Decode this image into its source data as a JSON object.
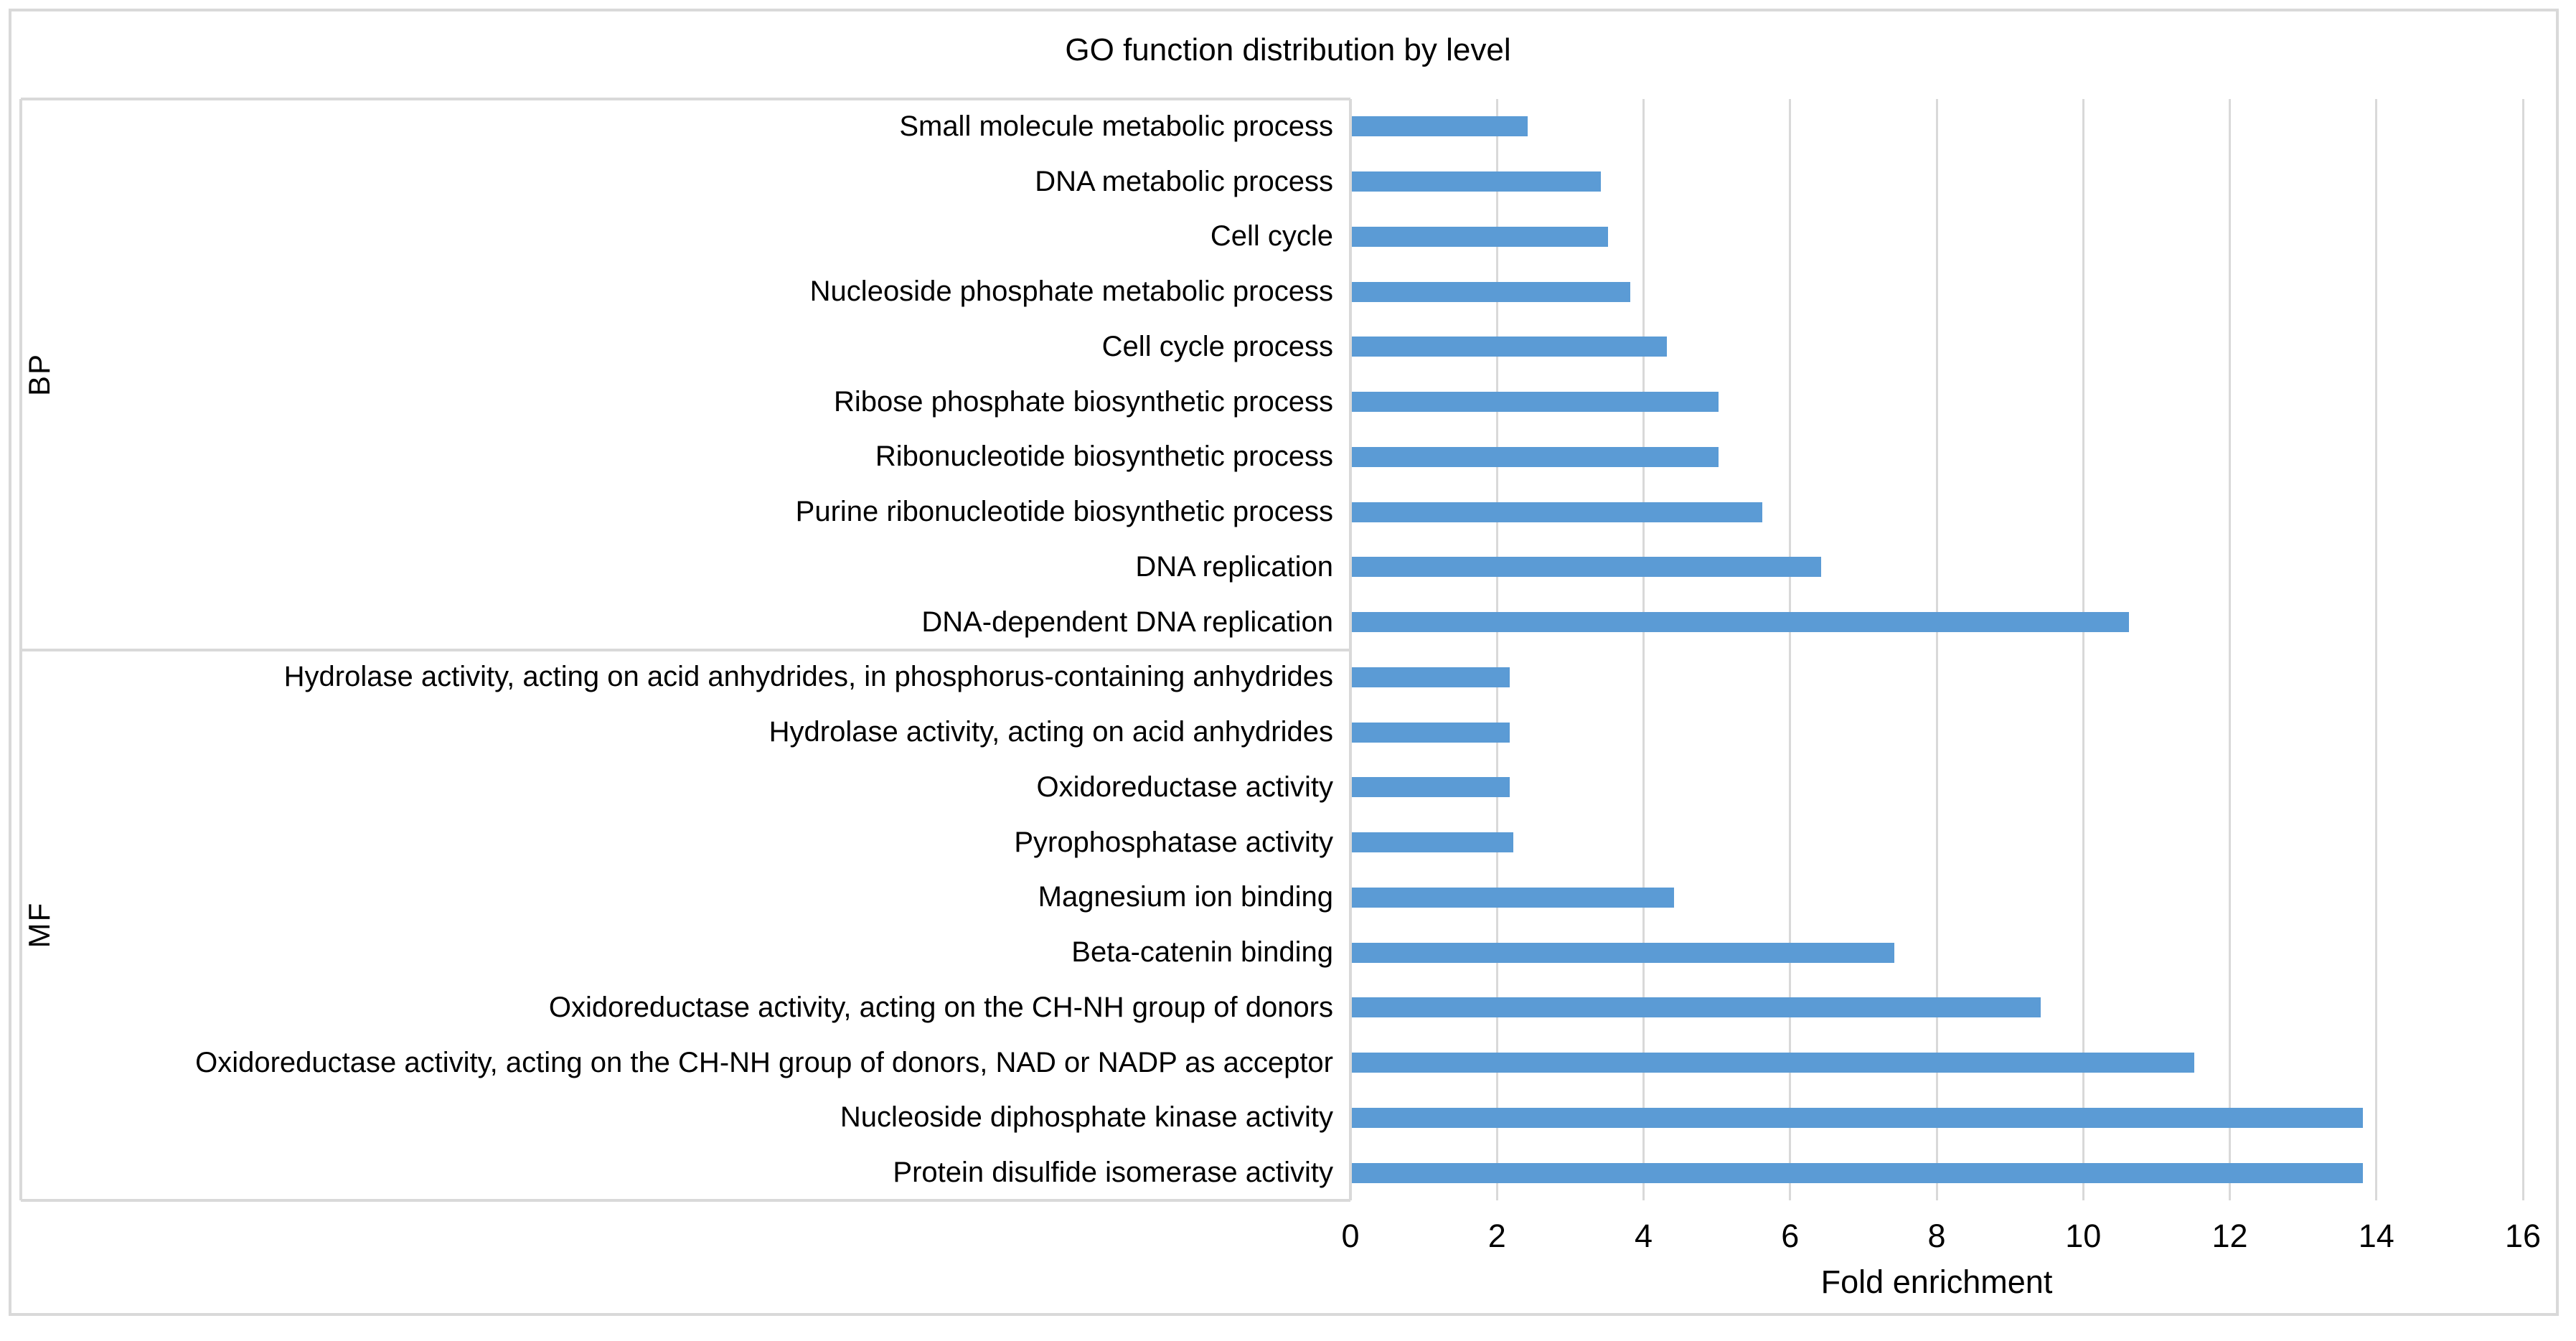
{
  "chart_data": {
    "type": "bar",
    "orientation": "horizontal",
    "title": "GO function distribution by level",
    "xlabel": "Fold enrichment",
    "ylabel": "",
    "xlim": [
      0,
      16
    ],
    "xticks": [
      0,
      2,
      4,
      6,
      8,
      10,
      12,
      14,
      16
    ],
    "grid": true,
    "legend": "none",
    "bar_color": "#5B9BD5",
    "grid_color": "#D9D9D9",
    "text_color": "#000000",
    "groups": [
      {
        "name": "BP",
        "items": [
          {
            "label": "Small molecule metabolic process",
            "value": 2.4
          },
          {
            "label": "DNA metabolic process",
            "value": 3.4
          },
          {
            "label": "Cell cycle",
            "value": 3.5
          },
          {
            "label": "Nucleoside phosphate metabolic process",
            "value": 3.8
          },
          {
            "label": "Cell cycle process",
            "value": 4.3
          },
          {
            "label": "Ribose phosphate biosynthetic process",
            "value": 5.0
          },
          {
            "label": "Ribonucleotide biosynthetic process",
            "value": 5.0
          },
          {
            "label": "Purine ribonucleotide biosynthetic process",
            "value": 5.6
          },
          {
            "label": "DNA replication",
            "value": 6.4
          },
          {
            "label": "DNA-dependent DNA replication",
            "value": 10.6
          }
        ]
      },
      {
        "name": "MF",
        "items": [
          {
            "label": "Hydrolase activity, acting on acid anhydrides, in phosphorus-containing anhydrides",
            "value": 2.15
          },
          {
            "label": "Hydrolase activity, acting on acid anhydrides",
            "value": 2.15
          },
          {
            "label": "Oxidoreductase activity",
            "value": 2.15
          },
          {
            "label": "Pyrophosphatase activity",
            "value": 2.2
          },
          {
            "label": "Magnesium ion binding",
            "value": 4.4
          },
          {
            "label": "Beta-catenin binding",
            "value": 7.4
          },
          {
            "label": "Oxidoreductase activity, acting on the CH-NH group of donors",
            "value": 9.4
          },
          {
            "label": "Oxidoreductase activity, acting on the CH-NH group of donors, NAD or NADP as acceptor",
            "value": 11.5
          },
          {
            "label": "Nucleoside diphosphate kinase activity",
            "value": 13.8
          },
          {
            "label": "Protein disulfide isomerase activity",
            "value": 13.8
          }
        ]
      }
    ]
  }
}
